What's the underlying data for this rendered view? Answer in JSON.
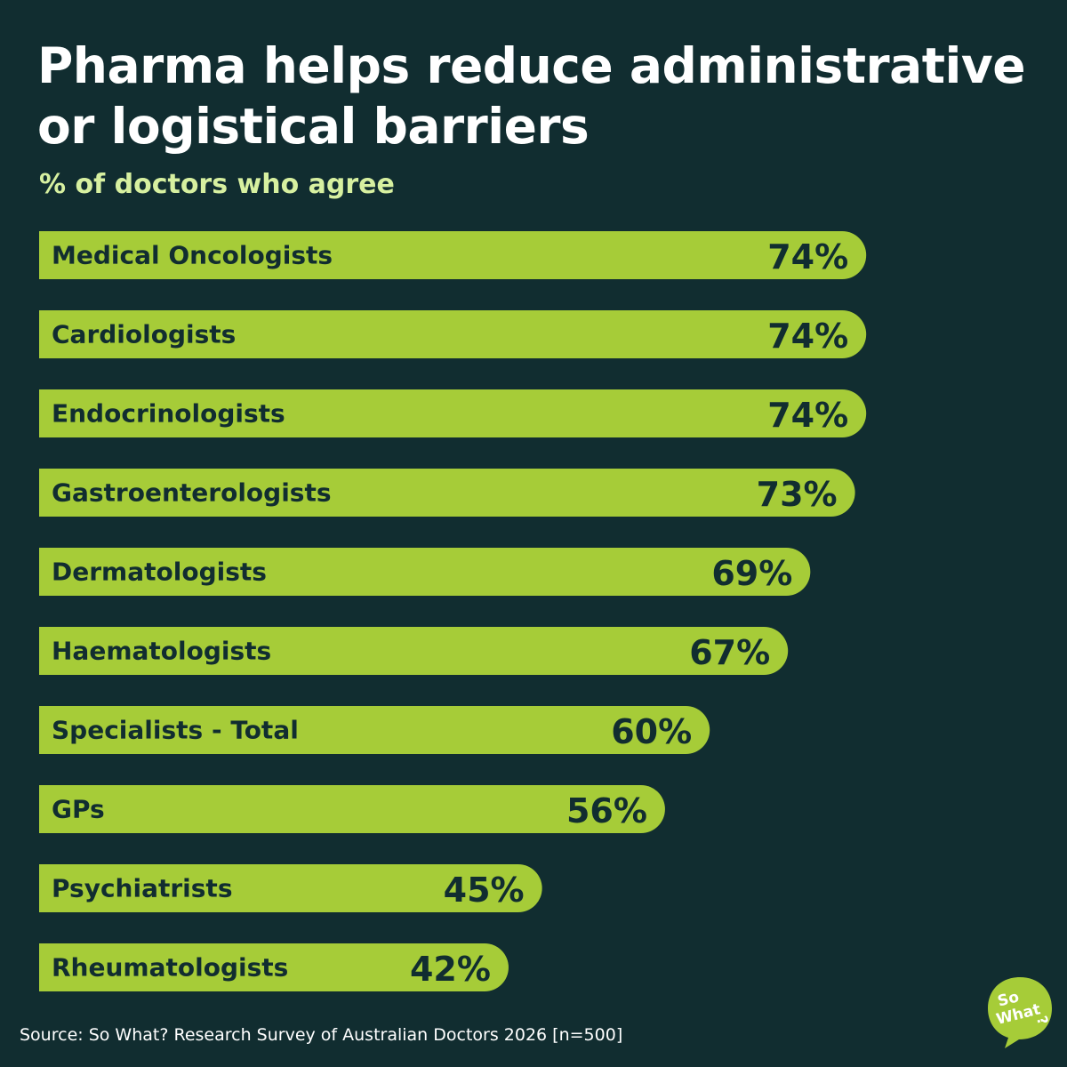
{
  "colors": {
    "background": "#112d30",
    "bar": "#a6cc38",
    "bar_text": "#112d30",
    "title": "#ffffff",
    "subtitle": "#d7f0a0",
    "logo_fill": "#a6cc38",
    "logo_text": "#ffffff"
  },
  "chart_data": {
    "type": "bar",
    "orientation": "horizontal",
    "title": "Pharma helps reduce administrative or logistical barriers",
    "subtitle": "% of doctors who agree",
    "categories": [
      "Medical Oncologists",
      "Cardiologists",
      "Endocrinologists",
      "Gastroenterologists",
      "Dermatologists",
      "Haematologists",
      "Specialists - Total",
      "GPs",
      "Psychiatrists",
      "Rheumatologists"
    ],
    "values": [
      74,
      74,
      74,
      73,
      69,
      67,
      60,
      56,
      45,
      42
    ],
    "value_labels": [
      "74%",
      "74%",
      "74%",
      "73%",
      "69%",
      "67%",
      "60%",
      "56%",
      "45%",
      "42%"
    ],
    "unit": "%",
    "xlim": [
      0,
      100
    ],
    "xlabel": "",
    "ylabel": ""
  },
  "source": "Source: So What? Research Survey of Australian Doctors 2026 [n=500]",
  "logo": {
    "line1": "So",
    "line2": "What",
    "mark": "?",
    "icon": "speech-bubble-logo"
  }
}
